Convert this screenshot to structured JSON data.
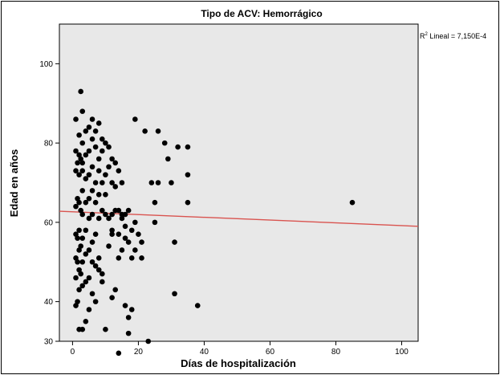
{
  "chart_data": {
    "type": "scatter",
    "title": "Tipo de ACV: Hemorrágico",
    "xlabel": "Días de hospitalización",
    "ylabel": "Edad en años",
    "xlim": [
      -4,
      105
    ],
    "ylim": [
      30,
      110
    ],
    "xticks": [
      0,
      20,
      40,
      60,
      80,
      100
    ],
    "yticks": [
      30,
      40,
      60,
      80,
      100
    ],
    "xtick_labels": [
      "0",
      "20",
      "40",
      "60",
      "80",
      "100"
    ],
    "ytick_labels": [
      "30",
      "40",
      "60",
      "80",
      "100"
    ],
    "fit_line": {
      "label_prefix": "R",
      "label_sup": "2",
      "label_rest": " Lineal = 7,150E-4",
      "x": [
        -4,
        105
      ],
      "y": [
        62.8,
        59.0
      ],
      "color": "#d9534f"
    },
    "background": "#e8e8e8",
    "point_color": "#000000",
    "points": [
      [
        85,
        65
      ],
      [
        38,
        39
      ],
      [
        35,
        79
      ],
      [
        35,
        72
      ],
      [
        35,
        65
      ],
      [
        32,
        79
      ],
      [
        31,
        55
      ],
      [
        31,
        42
      ],
      [
        30,
        70
      ],
      [
        29,
        76
      ],
      [
        28,
        80
      ],
      [
        26,
        83
      ],
      [
        26,
        70
      ],
      [
        25,
        60
      ],
      [
        25,
        65
      ],
      [
        24,
        70
      ],
      [
        23,
        30
      ],
      [
        22,
        83
      ],
      [
        21,
        55
      ],
      [
        21,
        51
      ],
      [
        20,
        57
      ],
      [
        19,
        86
      ],
      [
        19,
        60
      ],
      [
        19,
        53
      ],
      [
        18,
        58
      ],
      [
        18,
        51
      ],
      [
        18,
        38
      ],
      [
        17,
        63
      ],
      [
        17,
        55
      ],
      [
        17,
        36
      ],
      [
        17,
        32
      ],
      [
        16,
        62
      ],
      [
        16,
        59
      ],
      [
        16,
        56
      ],
      [
        16,
        39
      ],
      [
        15,
        70
      ],
      [
        15,
        62
      ],
      [
        15,
        53
      ],
      [
        15,
        61
      ],
      [
        14,
        73
      ],
      [
        14,
        63
      ],
      [
        14,
        57
      ],
      [
        14,
        51
      ],
      [
        14,
        27
      ],
      [
        13,
        75
      ],
      [
        13,
        69
      ],
      [
        13,
        63
      ],
      [
        13,
        43
      ],
      [
        12,
        76
      ],
      [
        12,
        70
      ],
      [
        12,
        62
      ],
      [
        12,
        58
      ],
      [
        12,
        57
      ],
      [
        12,
        41
      ],
      [
        11,
        79
      ],
      [
        11,
        74
      ],
      [
        11,
        61
      ],
      [
        11,
        54
      ],
      [
        10,
        80
      ],
      [
        10,
        72
      ],
      [
        10,
        67
      ],
      [
        10,
        62
      ],
      [
        10,
        33
      ],
      [
        9,
        81
      ],
      [
        9,
        78
      ],
      [
        9,
        70
      ],
      [
        9,
        63
      ],
      [
        9,
        47
      ],
      [
        9,
        45
      ],
      [
        8,
        85
      ],
      [
        8,
        76
      ],
      [
        8,
        73
      ],
      [
        8,
        67
      ],
      [
        8,
        61
      ],
      [
        8,
        51
      ],
      [
        8,
        48
      ],
      [
        7,
        83
      ],
      [
        7,
        79
      ],
      [
        7,
        70
      ],
      [
        7,
        65
      ],
      [
        7,
        57
      ],
      [
        7,
        49
      ],
      [
        7,
        40
      ],
      [
        6,
        86
      ],
      [
        6,
        81
      ],
      [
        6,
        74
      ],
      [
        6,
        68
      ],
      [
        6,
        62
      ],
      [
        6,
        55
      ],
      [
        6,
        50
      ],
      [
        6,
        42
      ],
      [
        5,
        84
      ],
      [
        5,
        78
      ],
      [
        5,
        72
      ],
      [
        5,
        66
      ],
      [
        5,
        61
      ],
      [
        5,
        53
      ],
      [
        5,
        46
      ],
      [
        5,
        38
      ],
      [
        4,
        83
      ],
      [
        4,
        77
      ],
      [
        4,
        71
      ],
      [
        4,
        65
      ],
      [
        4,
        58
      ],
      [
        4,
        52
      ],
      [
        4,
        45
      ],
      [
        4,
        35
      ],
      [
        3,
        88
      ],
      [
        3,
        80
      ],
      [
        3,
        75
      ],
      [
        3,
        73
      ],
      [
        3,
        68
      ],
      [
        3,
        62
      ],
      [
        3,
        56
      ],
      [
        3,
        50
      ],
      [
        3,
        44
      ],
      [
        3,
        33
      ],
      [
        2.5,
        93
      ],
      [
        2.5,
        76
      ],
      [
        2.5,
        63
      ],
      [
        2.5,
        54
      ],
      [
        2.5,
        47
      ],
      [
        2,
        82
      ],
      [
        2,
        77
      ],
      [
        2,
        72
      ],
      [
        2,
        65
      ],
      [
        2,
        58
      ],
      [
        2,
        53
      ],
      [
        2,
        48
      ],
      [
        2,
        43
      ],
      [
        2,
        33
      ],
      [
        1.5,
        75
      ],
      [
        1.5,
        66
      ],
      [
        1.5,
        56
      ],
      [
        1.5,
        50
      ],
      [
        1.5,
        40
      ],
      [
        1,
        86
      ],
      [
        1,
        78
      ],
      [
        1,
        73
      ],
      [
        1,
        64
      ],
      [
        1,
        57
      ],
      [
        1,
        51
      ],
      [
        1,
        46
      ],
      [
        1,
        39
      ]
    ]
  }
}
